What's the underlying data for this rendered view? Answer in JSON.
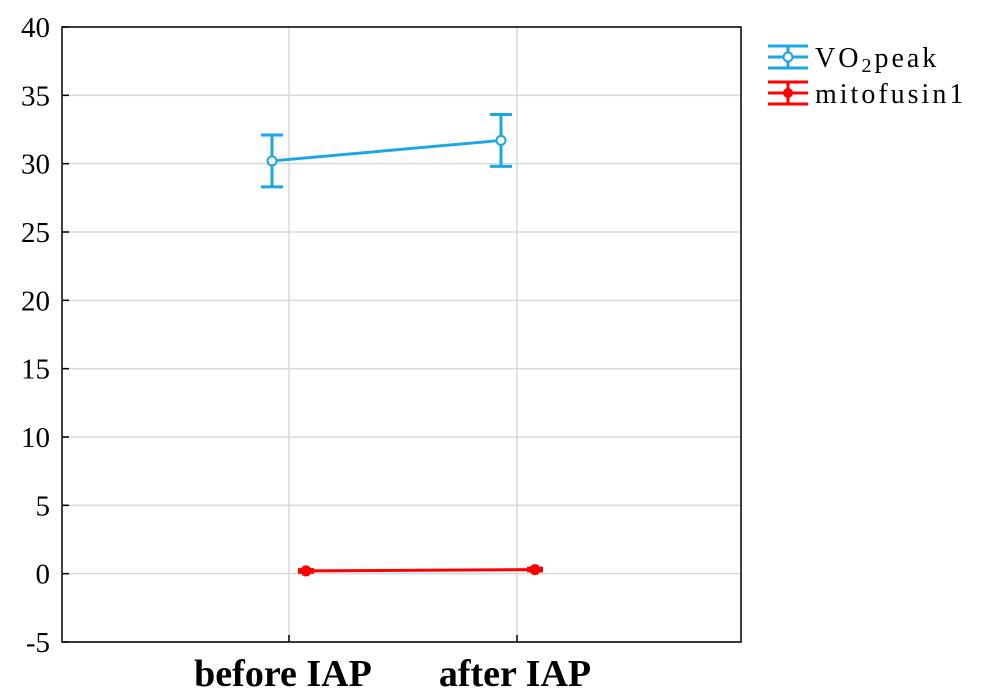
{
  "chart_data": {
    "type": "line",
    "title": "",
    "xlabel": "",
    "ylabel": "",
    "categories": [
      "before IAP",
      "after IAP"
    ],
    "ylim": [
      -5,
      40
    ],
    "yticks": [
      -5,
      0,
      5,
      10,
      15,
      20,
      25,
      30,
      35,
      40
    ],
    "grid": true,
    "legend_position": "top-right, outside plot",
    "series": [
      {
        "name": "VO2peak",
        "legend_label": {
          "base": "VO",
          "sub": "2",
          "rest": "peak"
        },
        "color": "#1aa7e6",
        "marker": "open-circle",
        "values": [
          30.2,
          31.7
        ],
        "error_low": [
          28.3,
          29.8
        ],
        "error_high": [
          32.1,
          33.6
        ]
      },
      {
        "name": "mitofusin1",
        "legend_label": {
          "base": "mitofusin1",
          "sub": "",
          "rest": ""
        },
        "color": "#ff0000",
        "marker": "filled-circle",
        "values": [
          0.2,
          0.3
        ],
        "error_low": [
          0.1,
          0.2
        ],
        "error_high": [
          0.3,
          0.4
        ]
      }
    ]
  }
}
